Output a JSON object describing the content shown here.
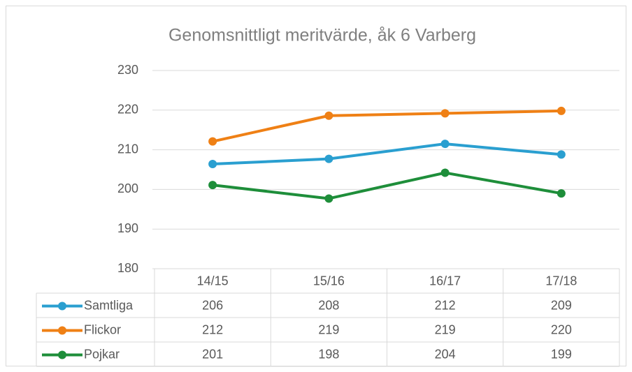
{
  "chart_data": {
    "type": "line",
    "title": "Genomsnittligt meritvärde, åk 6 Varberg",
    "categories": [
      "14/15",
      "15/16",
      "16/17",
      "17/18"
    ],
    "series": [
      {
        "name": "Samtliga",
        "color": "#2a9fd0",
        "values": [
          206.4,
          207.7,
          211.5,
          208.8
        ],
        "value_labels": [
          "206",
          "208",
          "212",
          "209"
        ]
      },
      {
        "name": "Flickor",
        "color": "#ef8015",
        "values": [
          212.1,
          218.6,
          219.2,
          219.8
        ],
        "value_labels": [
          "212",
          "219",
          "219",
          "220"
        ]
      },
      {
        "name": "Pojkar",
        "color": "#1e8e3a",
        "values": [
          201.1,
          197.7,
          204.2,
          199.0
        ],
        "value_labels": [
          "201",
          "198",
          "204",
          "199"
        ]
      }
    ],
    "ylim": [
      180,
      230
    ],
    "yticks": [
      180,
      190,
      200,
      210,
      220,
      230
    ],
    "grid": true
  }
}
